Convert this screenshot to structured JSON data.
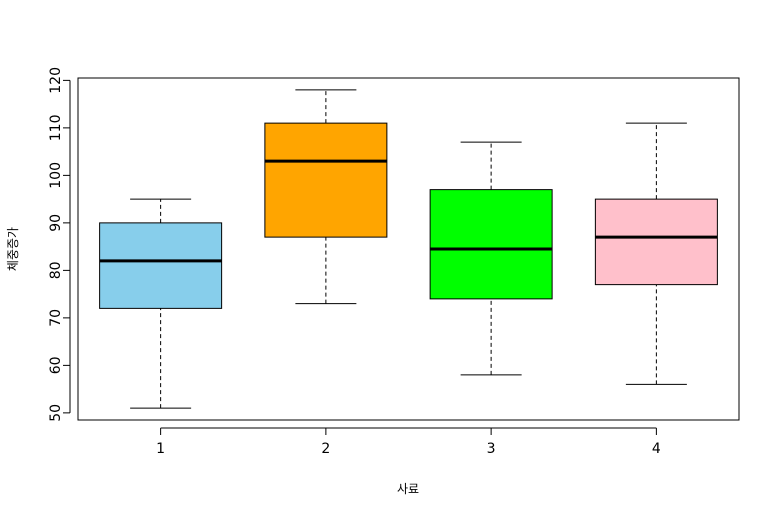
{
  "chart_data": {
    "type": "boxplot",
    "title": "",
    "xlabel": "사료",
    "ylabel": "체중증가",
    "ylim": [
      48.5,
      120.5
    ],
    "yticks": [
      50,
      60,
      70,
      80,
      90,
      100,
      110,
      120
    ],
    "grid": false,
    "legend": "none",
    "categories": [
      "1",
      "2",
      "3",
      "4"
    ],
    "boxes": [
      {
        "category": "1",
        "min": 51,
        "q1": 72,
        "median": 82,
        "q3": 90,
        "max": 95,
        "color": "#87CEEB"
      },
      {
        "category": "2",
        "min": 73,
        "q1": 87,
        "median": 103,
        "q3": 111,
        "max": 118,
        "color": "#FFA500"
      },
      {
        "category": "3",
        "min": 58,
        "q1": 74,
        "median": 84.5,
        "q3": 97,
        "max": 107,
        "color": "#00FF00"
      },
      {
        "category": "4",
        "min": 56,
        "q1": 77,
        "median": 87,
        "q3": 95,
        "max": 111,
        "color": "#FFC0CB"
      }
    ]
  }
}
